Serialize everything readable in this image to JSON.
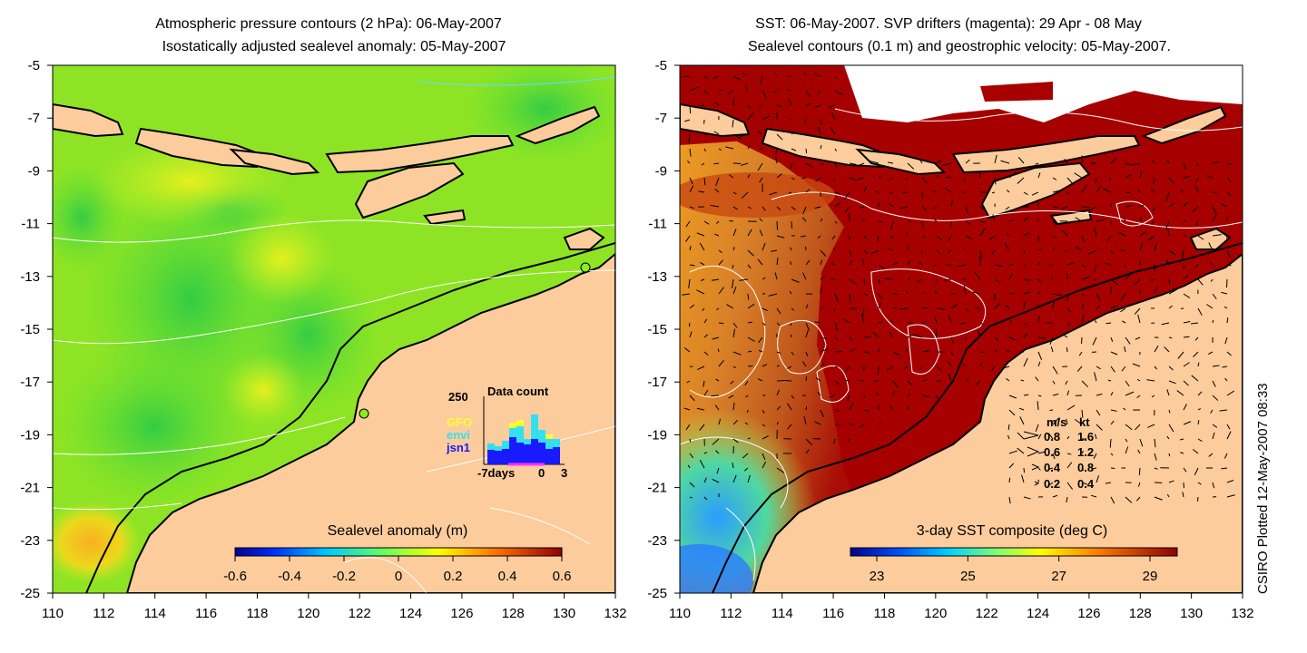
{
  "left_panel": {
    "title_line1": "Atmospheric pressure contours (2 hPa): 06-May-2007",
    "title_line2": "Isostatically adjusted sealevel anomaly: 05-May-2007",
    "colorbar_title": "Sealevel anomaly (m)",
    "colorbar_ticks": [
      "-0.6",
      "-0.4",
      "-0.2",
      "0",
      "0.2",
      "0.4",
      "0.6"
    ],
    "inset": {
      "title": "Data count",
      "ymax_label": "250",
      "xlabels": [
        "-7days",
        "0",
        "3"
      ],
      "legend": [
        {
          "label": "GFO",
          "color": "#ffff33"
        },
        {
          "label": "envi",
          "color": "#33e0f0"
        },
        {
          "label": "jsn1",
          "color": "#1a1aff"
        }
      ]
    }
  },
  "right_panel": {
    "title_line1": "SST: 06-May-2007. SVP drifters (magenta): 29 Apr - 08 May",
    "title_line2": "Sealevel contours (0.1 m) and geostrophic velocity: 05-May-2007.",
    "colorbar_title": "3-day SST composite (deg C)",
    "colorbar_ticks": [
      "23",
      "25",
      "27",
      "29"
    ],
    "velocity_key": {
      "header_ms": "m/s",
      "header_kt": "kt",
      "rows": [
        {
          "ms": "0.8",
          "kt": "1.6"
        },
        {
          "ms": "0.6",
          "kt": "1.2"
        },
        {
          "ms": "0.4",
          "kt": "0.8"
        },
        {
          "ms": "0.2",
          "kt": "0.4"
        }
      ]
    }
  },
  "axes": {
    "x_ticks": [
      "110",
      "112",
      "114",
      "116",
      "118",
      "120",
      "122",
      "124",
      "126",
      "128",
      "130",
      "132"
    ],
    "y_ticks": [
      "-5",
      "-7",
      "-9",
      "-11",
      "-13",
      "-15",
      "-17",
      "-19",
      "-21",
      "-23",
      "-25"
    ]
  },
  "credit": "CSIRO Plotted 12-May-2007 08:33",
  "colors": {
    "land": "#fccc9c",
    "ocean_left": "#88ee22",
    "ocean_right_warm": "#aa0000",
    "sst_mid": "#cc6a1a"
  }
}
